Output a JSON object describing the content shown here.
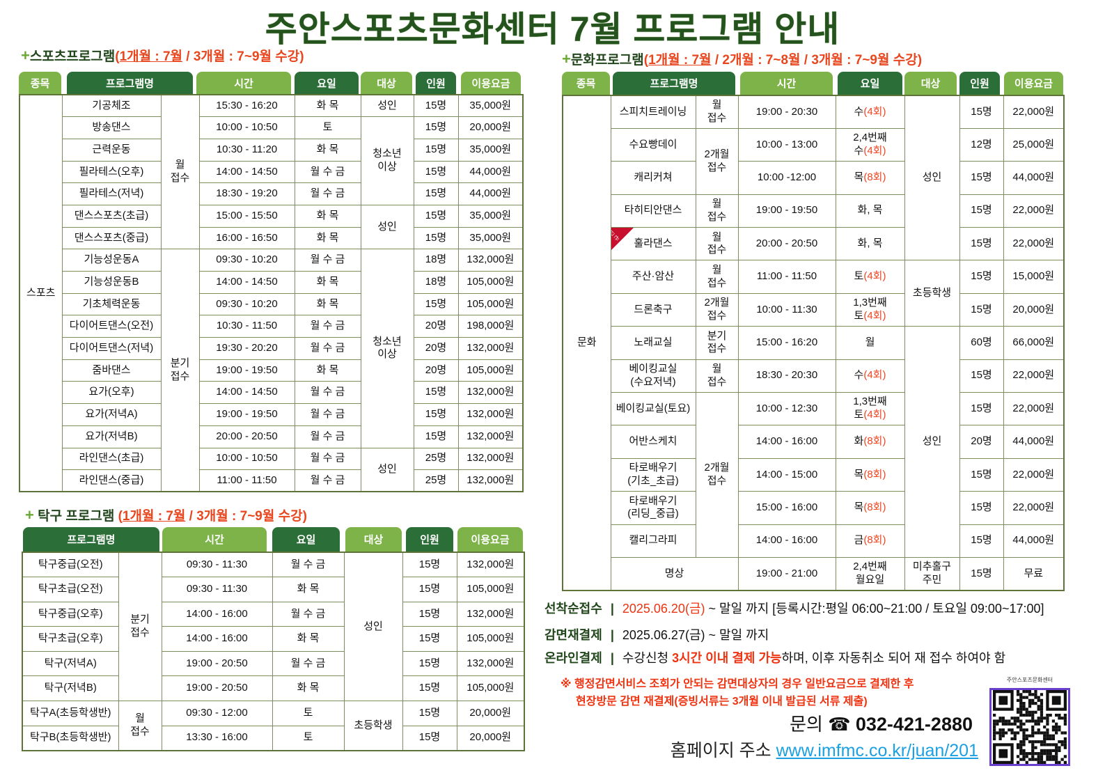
{
  "title": "주안스포츠문화센터 7월 프로그램 안내",
  "colors": {
    "dark_green": "#2b6e38",
    "light_green": "#7db348",
    "title_green": "#24531d",
    "accent_red": "#ee4422",
    "link_blue": "#1ba0e2",
    "qr_border": "#6a3fd0"
  },
  "sports": {
    "heading": {
      "name": "스포츠프로그램",
      "open": "(",
      "term1": "1개월 : 7월",
      "rest": " / 3개월 : 7~9월 수강)"
    },
    "headers": [
      "종목",
      "프로그램명",
      "시간",
      "요일",
      "대상",
      "인원",
      "이용요금"
    ],
    "rows": [
      [
        {
          "t": "스포츠",
          "rs": 18
        },
        {
          "t": "기공체조"
        },
        {
          "t": "월\n접수",
          "rs": 7
        },
        {
          "t": "15:30 - 16:20"
        },
        {
          "t": "화 목"
        },
        {
          "t": "성인"
        },
        {
          "t": "15명"
        },
        {
          "t": "35,000원"
        }
      ],
      [
        {
          "t": "방송댄스"
        },
        {
          "t": "10:00 - 10:50"
        },
        {
          "t": "토"
        },
        {
          "t": "청소년\n이상",
          "rs": 4
        },
        {
          "t": "15명"
        },
        {
          "t": "20,000원"
        }
      ],
      [
        {
          "t": "근력운동"
        },
        {
          "t": "10:30 - 11:20"
        },
        {
          "t": "화 목"
        },
        {
          "t": "15명"
        },
        {
          "t": "35,000원"
        }
      ],
      [
        {
          "t": "필라테스(오후)"
        },
        {
          "t": "14:00 - 14:50"
        },
        {
          "t": "월 수 금"
        },
        {
          "t": "15명"
        },
        {
          "t": "44,000원"
        }
      ],
      [
        {
          "t": "필라테스(저녁)"
        },
        {
          "t": "18:30 - 19:20"
        },
        {
          "t": "월 수 금"
        },
        {
          "t": "15명"
        },
        {
          "t": "44,000원"
        }
      ],
      [
        {
          "t": "댄스스포츠(초급)"
        },
        {
          "t": "15:00 - 15:50"
        },
        {
          "t": "화 목"
        },
        {
          "t": "성인",
          "rs": 2
        },
        {
          "t": "15명"
        },
        {
          "t": "35,000원"
        }
      ],
      [
        {
          "t": "댄스스포츠(중급)"
        },
        {
          "t": "16:00 - 16:50"
        },
        {
          "t": "화 목"
        },
        {
          "t": "15명"
        },
        {
          "t": "35,000원"
        }
      ],
      [
        {
          "t": "기능성운동A"
        },
        {
          "t": "분기\n접수",
          "rs": 11
        },
        {
          "t": "09:30 - 10:20"
        },
        {
          "t": "월 수 금"
        },
        {
          "t": "청소년\n이상",
          "rs": 9
        },
        {
          "t": "18명"
        },
        {
          "t": "132,000원"
        }
      ],
      [
        {
          "t": "기능성운동B"
        },
        {
          "t": "14:00 - 14:50"
        },
        {
          "t": "화 목"
        },
        {
          "t": "18명"
        },
        {
          "t": "105,000원"
        }
      ],
      [
        {
          "t": "기초체력운동"
        },
        {
          "t": "09:30 - 10:20"
        },
        {
          "t": "화 목"
        },
        {
          "t": "15명"
        },
        {
          "t": "105,000원"
        }
      ],
      [
        {
          "t": "다이어트댄스(오전)"
        },
        {
          "t": "10:30 - 11:50"
        },
        {
          "t": "월 수 금"
        },
        {
          "t": "20명"
        },
        {
          "t": "198,000원"
        }
      ],
      [
        {
          "t": "다이어트댄스(저녁)"
        },
        {
          "t": "19:30 - 20:20"
        },
        {
          "t": "월 수 금"
        },
        {
          "t": "20명"
        },
        {
          "t": "132,000원"
        }
      ],
      [
        {
          "t": "줌바댄스"
        },
        {
          "t": "19:00 - 19:50"
        },
        {
          "t": "화 목"
        },
        {
          "t": "20명"
        },
        {
          "t": "105,000원"
        }
      ],
      [
        {
          "t": "요가(오후)"
        },
        {
          "t": "14:00 - 14:50"
        },
        {
          "t": "월 수 금"
        },
        {
          "t": "15명"
        },
        {
          "t": "132,000원"
        }
      ],
      [
        {
          "t": "요가(저녁A)"
        },
        {
          "t": "19:00 - 19:50"
        },
        {
          "t": "월 수 금"
        },
        {
          "t": "15명"
        },
        {
          "t": "132,000원"
        }
      ],
      [
        {
          "t": "요가(저녁B)"
        },
        {
          "t": "20:00 - 20:50"
        },
        {
          "t": "월 수 금"
        },
        {
          "t": "15명"
        },
        {
          "t": "132,000원"
        }
      ],
      [
        {
          "t": "라인댄스(초급)"
        },
        {
          "t": "10:00 - 10:50"
        },
        {
          "t": "월 수 금"
        },
        {
          "t": "성인",
          "rs": 2
        },
        {
          "t": "25명"
        },
        {
          "t": "132,000원"
        }
      ],
      [
        {
          "t": "라인댄스(중급)"
        },
        {
          "t": "11:00 - 11:50"
        },
        {
          "t": "월 수 금"
        },
        {
          "t": "25명"
        },
        {
          "t": "132,000원"
        }
      ]
    ]
  },
  "table_tennis": {
    "heading": {
      "name": "탁구 프로그램",
      "open": "(",
      "term1": "1개월 : 7월",
      "rest": " / 3개월 : 7~9월 수강)"
    },
    "headers": [
      "프로그램명",
      "시간",
      "요일",
      "대상",
      "인원",
      "이용요금"
    ],
    "rows": [
      [
        {
          "t": "탁구중급(오전)"
        },
        {
          "t": "분기\n접수",
          "rs": 6
        },
        {
          "t": "09:30 - 11:30"
        },
        {
          "t": "월 수 금"
        },
        {
          "t": "성인",
          "rs": 6
        },
        {
          "t": "15명"
        },
        {
          "t": "132,000원"
        }
      ],
      [
        {
          "t": "탁구초급(오전)"
        },
        {
          "t": "09:30 - 11:30"
        },
        {
          "t": "화 목"
        },
        {
          "t": "15명"
        },
        {
          "t": "105,000원"
        }
      ],
      [
        {
          "t": "탁구중급(오후)"
        },
        {
          "t": "14:00 - 16:00"
        },
        {
          "t": "월 수 금"
        },
        {
          "t": "15명"
        },
        {
          "t": "132,000원"
        }
      ],
      [
        {
          "t": "탁구초급(오후)"
        },
        {
          "t": "14:00 - 16:00"
        },
        {
          "t": "화 목"
        },
        {
          "t": "15명"
        },
        {
          "t": "105,000원"
        }
      ],
      [
        {
          "t": "탁구(저녁A)"
        },
        {
          "t": "19:00 - 20:50"
        },
        {
          "t": "월 수 금"
        },
        {
          "t": "15명"
        },
        {
          "t": "132,000원"
        }
      ],
      [
        {
          "t": "탁구(저녁B)"
        },
        {
          "t": "19:00 - 20:50"
        },
        {
          "t": "화 목"
        },
        {
          "t": "15명"
        },
        {
          "t": "105,000원"
        }
      ],
      [
        {
          "t": "탁구A(초등학생반)"
        },
        {
          "t": "월\n접수",
          "rs": 2
        },
        {
          "t": "09:30 - 12:00"
        },
        {
          "t": "토"
        },
        {
          "t": "초등학생",
          "rs": 2
        },
        {
          "t": "15명"
        },
        {
          "t": "20,000원"
        }
      ],
      [
        {
          "t": "탁구B(초등학생반)"
        },
        {
          "t": "13:30 - 16:00"
        },
        {
          "t": "토"
        },
        {
          "t": "15명"
        },
        {
          "t": "20,000원"
        }
      ]
    ]
  },
  "culture": {
    "heading": {
      "name": "문화프로그램",
      "open": "(",
      "term1": "1개월 : 7월",
      "rest": " / 2개월 : 7~8월 / 3개월 : 7~9월 수강)"
    },
    "headers": [
      "종목",
      "프로그램명",
      "시간",
      "요일",
      "대상",
      "인원",
      "이용요금"
    ],
    "new_badge": "신규",
    "rows": [
      [
        {
          "t": "문화",
          "rs": 15
        },
        {
          "t": "스피치트레이닝"
        },
        {
          "t": "월\n접수"
        },
        {
          "t": "19:00 - 20:30"
        },
        {
          "t": "수",
          "r": "(4회)"
        },
        {
          "t": "성인",
          "rs": 5
        },
        {
          "t": "15명"
        },
        {
          "t": "22,000원"
        }
      ],
      [
        {
          "t": "수요빵데이"
        },
        {
          "t": "2개월\n접수",
          "rs": 2
        },
        {
          "t": "10:00 - 13:00"
        },
        {
          "t": "2,4번째\n수",
          "r": "(4회)"
        },
        {
          "t": "12명"
        },
        {
          "t": "25,000원"
        }
      ],
      [
        {
          "t": "캐리커쳐"
        },
        {
          "t": "10:00 -12:00"
        },
        {
          "t": "목",
          "r": "(8회)"
        },
        {
          "t": "15명"
        },
        {
          "t": "44,000원"
        }
      ],
      [
        {
          "t": "타히티안댄스"
        },
        {
          "t": "월\n접수"
        },
        {
          "t": "19:00 - 19:50"
        },
        {
          "t": "화, 목"
        },
        {
          "t": "15명"
        },
        {
          "t": "22,000원"
        }
      ],
      [
        {
          "t": "훌라댄스",
          "new": true
        },
        {
          "t": "월\n접수"
        },
        {
          "t": "20:00 - 20:50"
        },
        {
          "t": "화, 목"
        },
        {
          "t": "15명"
        },
        {
          "t": "22,000원"
        }
      ],
      [
        {
          "t": "주산·암산"
        },
        {
          "t": "월\n접수"
        },
        {
          "t": "11:00 - 11:50"
        },
        {
          "t": "토",
          "r": "(4회)"
        },
        {
          "t": "초등학생",
          "rs": 2
        },
        {
          "t": "15명"
        },
        {
          "t": "15,000원"
        }
      ],
      [
        {
          "t": "드론축구"
        },
        {
          "t": "2개월\n접수"
        },
        {
          "t": "10:00 - 11:30"
        },
        {
          "t": "1,3번째\n토",
          "r": "(4회)"
        },
        {
          "t": "15명"
        },
        {
          "t": "20,000원"
        }
      ],
      [
        {
          "t": "노래교실"
        },
        {
          "t": "분기\n접수"
        },
        {
          "t": "15:00 - 16:20"
        },
        {
          "t": "월"
        },
        {
          "t": "성인",
          "rs": 7
        },
        {
          "t": "60명"
        },
        {
          "t": "66,000원"
        }
      ],
      [
        {
          "t": "베이킹교실\n(수요저녁)"
        },
        {
          "t": "월\n접수"
        },
        {
          "t": "18:30 - 20:30"
        },
        {
          "t": "수",
          "r": "(4회)"
        },
        {
          "t": "15명"
        },
        {
          "t": "22,000원"
        }
      ],
      [
        {
          "t": "베이킹교실(토요)"
        },
        {
          "t": "2개월\n접수",
          "rs": 5
        },
        {
          "t": "10:00 - 12:30"
        },
        {
          "t": "1,3번째\n토",
          "r": "(4회)"
        },
        {
          "t": "15명"
        },
        {
          "t": "22,000원"
        }
      ],
      [
        {
          "t": "어반스케치"
        },
        {
          "t": "14:00 - 16:00"
        },
        {
          "t": "화",
          "r": "(8회)"
        },
        {
          "t": "20명"
        },
        {
          "t": "44,000원"
        }
      ],
      [
        {
          "t": "타로배우기\n(기초_초급)"
        },
        {
          "t": "14:00 - 15:00"
        },
        {
          "t": "목",
          "r": "(8회)"
        },
        {
          "t": "15명"
        },
        {
          "t": "22,000원"
        }
      ],
      [
        {
          "t": "타로배우기\n(리딩_중급)"
        },
        {
          "t": "15:00 - 16:00"
        },
        {
          "t": "목",
          "r": "(8회)"
        },
        {
          "t": "15명"
        },
        {
          "t": "22,000원"
        }
      ],
      [
        {
          "t": "캘리그라피"
        },
        {
          "t": "14:00 - 16:00"
        },
        {
          "t": "금",
          "r": "(8회)"
        },
        {
          "t": "15명"
        },
        {
          "t": "44,000원"
        }
      ],
      [
        {
          "t": "명상",
          "cs": 2
        },
        {
          "t": "19:00 - 21:00"
        },
        {
          "t": "2,4번째\n월요일"
        },
        {
          "t": "미추홀구\n주민"
        },
        {
          "t": "15명"
        },
        {
          "t": "무료"
        }
      ]
    ]
  },
  "info": {
    "first_come": {
      "label": "선착순접수",
      "date": "2025.06.20(금)",
      "text": " ~ 말일 까지 [등록시간:평일 06:00~21:00 / 토요일 09:00~17:00]"
    },
    "discount": {
      "label": "감면재결제",
      "text": "2025.06.27(금) ~ 말일 까지"
    },
    "online": {
      "label": "온라인결제",
      "pre": "수강신청 ",
      "highlight": "3시간 이내 결제 가능",
      "post": "하며, 이후 자동취소 되어 재 접수 하여야 함"
    },
    "separator": "|",
    "notice_line1": "※ 행정감면서비스 조회가 안되는 감면대상자의 경우 일반요금으로 결제한 후",
    "notice_line2": "현장방문 감면 재결제(증빙서류는 3개월 이내 발급된 서류 제출)",
    "contact_label": "문의",
    "phone_icon": "telephone-icon",
    "phone_glyph": "☎",
    "phone": "032-421-2880",
    "homepage_label": "홈페이지 주소",
    "homepage_url": "www.imfmc.co.kr/juan/201",
    "qr_label": "주안스포츠문화센터"
  }
}
